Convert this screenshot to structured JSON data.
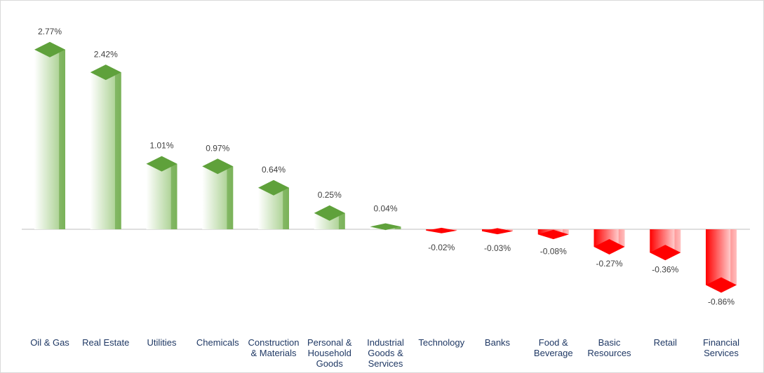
{
  "chart_data": {
    "type": "bar",
    "categories": [
      "Oil & Gas",
      "Real Estate",
      "Utilities",
      "Chemicals",
      "Construction & Materials",
      "Personal & Household Goods",
      "Industrial Goods & Services",
      "Technology",
      "Banks",
      "Food & Beverage",
      "Basic Resources",
      "Retail",
      "Financial Services"
    ],
    "values": [
      2.77,
      2.42,
      1.01,
      0.97,
      0.64,
      0.25,
      0.04,
      -0.02,
      -0.03,
      -0.08,
      -0.27,
      -0.36,
      -0.86
    ],
    "value_labels": [
      "2.77%",
      "2.42%",
      "1.01%",
      "0.97%",
      "0.64%",
      "0.25%",
      "0.04%",
      "-0.02%",
      "-0.03%",
      "-0.08%",
      "-0.27%",
      "-0.36%",
      "-0.86%"
    ],
    "positive_color": "#5fa13b",
    "negative_color": "#ff0000"
  }
}
